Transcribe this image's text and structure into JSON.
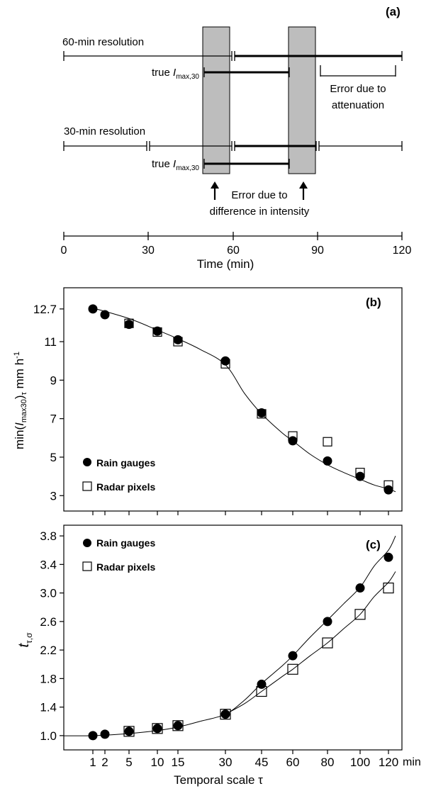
{
  "panel_a": {
    "label": "(a)",
    "row60_label": "60-min resolution",
    "row30_label": "30-min resolution",
    "true_label": "true",
    "true_label_sym": "I",
    "true_label_sub": "max,30",
    "attenuation_l1": "Error due to",
    "attenuation_l2": "attenuation",
    "intensity_l1": "Error due to",
    "intensity_l2": "difference in intensity",
    "xlabel": "Time (min)",
    "ticks": [
      "0",
      "30",
      "60",
      "90",
      "120"
    ]
  },
  "panel_b": {
    "label": "(b)",
    "ylabel_min": "min(",
    "ylabel_sym": "I",
    "ylabel_sub": "max30",
    "ylabel_tail": ")",
    "ylabel_tau": "τ",
    "ylabel_unit": " mm h",
    "ylabel_exp": "-1",
    "legend_gauges": "Rain gauges",
    "legend_radar": "Radar pixels",
    "yticks": [
      "12.7",
      "11",
      "9",
      "7",
      "5",
      "3"
    ]
  },
  "panel_c": {
    "label": "(c)",
    "ylabel_sym": "t",
    "ylabel_sub": "τ,σ",
    "legend_gauges": "Rain gauges",
    "legend_radar": "Radar pixels",
    "yticks": [
      "3.8",
      "3.4",
      "3.0",
      "2.6",
      "2.2",
      "1.8",
      "1.4",
      "1.0"
    ],
    "xticks": [
      "1",
      "2",
      "5",
      "10",
      "15",
      "30",
      "45",
      "60",
      "80",
      "100",
      "120"
    ],
    "xunit": "min",
    "xlabel": "Temporal scale τ"
  },
  "chart_data": [
    {
      "type": "diagram",
      "panel": "(a)",
      "xlabel": "Time (min)",
      "xlim": [
        0,
        120
      ],
      "shaded_windows_min": [
        [
          50,
          60
        ],
        [
          80,
          90
        ]
      ],
      "row_60min": {
        "thin": [
          [
            0,
            60
          ]
        ],
        "thick": [
          [
            60,
            120
          ]
        ]
      },
      "true_imax30": [
        [
          50,
          80
        ]
      ],
      "row_30min": {
        "thin": [
          [
            0,
            30
          ],
          [
            30,
            60
          ],
          [
            90,
            120
          ]
        ],
        "thick": [
          [
            60,
            90
          ]
        ]
      },
      "attenuation_bracket": [
        92,
        118
      ]
    },
    {
      "type": "scatter",
      "panel": "(b)",
      "x": [
        1,
        2,
        5,
        10,
        15,
        30,
        45,
        60,
        80,
        100,
        120
      ],
      "series": [
        {
          "name": "Rain gauges",
          "marker": "filled-circle",
          "values": [
            12.7,
            12.4,
            11.9,
            11.55,
            11.1,
            10.0,
            7.3,
            5.85,
            4.8,
            4.0,
            3.3
          ]
        },
        {
          "name": "Radar pixels",
          "marker": "open-square",
          "values": [
            null,
            null,
            11.95,
            11.5,
            11.0,
            9.85,
            7.25,
            6.1,
            5.8,
            4.2,
            3.55
          ]
        }
      ],
      "fit": {
        "x": [
          1,
          5,
          10,
          15,
          22,
          30,
          38,
          45,
          55,
          60,
          70,
          80,
          90,
          100,
          110,
          120,
          125
        ],
        "y": [
          12.75,
          12.2,
          11.6,
          11.15,
          10.6,
          9.8,
          8.3,
          7.25,
          6.25,
          5.85,
          5.15,
          4.6,
          4.2,
          3.85,
          3.55,
          3.35,
          3.2
        ]
      },
      "ylim": [
        2.2,
        13.8
      ],
      "yticks": [
        3,
        5,
        7,
        9,
        11,
        12.7
      ]
    },
    {
      "type": "scatter",
      "panel": "(c)",
      "x": [
        1,
        2,
        5,
        10,
        15,
        30,
        45,
        60,
        80,
        100,
        120
      ],
      "series": [
        {
          "name": "Rain gauges",
          "marker": "filled-circle",
          "values": [
            1.0,
            1.02,
            1.06,
            1.1,
            1.14,
            1.3,
            1.72,
            2.12,
            2.6,
            3.07,
            3.5
          ]
        },
        {
          "name": "Radar pixels",
          "marker": "open-square",
          "values": [
            null,
            null,
            1.06,
            1.1,
            1.14,
            1.3,
            1.62,
            1.93,
            2.3,
            2.7,
            3.07
          ]
        }
      ],
      "fits": [
        {
          "name": "Rain gauges",
          "x": [
            -5,
            1,
            5,
            10,
            15,
            22,
            30,
            38,
            45,
            55,
            60,
            70,
            80,
            90,
            100,
            110,
            120,
            125
          ],
          "y": [
            1.0,
            1.0,
            1.03,
            1.07,
            1.12,
            1.2,
            1.3,
            1.5,
            1.73,
            1.98,
            2.12,
            2.38,
            2.62,
            2.85,
            3.08,
            3.38,
            3.6,
            3.8
          ]
        },
        {
          "name": "Radar pixels",
          "x": [
            30,
            38,
            45,
            55,
            60,
            70,
            80,
            90,
            100,
            110,
            120,
            125
          ],
          "y": [
            1.3,
            1.45,
            1.62,
            1.83,
            1.93,
            2.12,
            2.3,
            2.5,
            2.7,
            2.95,
            3.15,
            3.3
          ]
        }
      ],
      "ylim": [
        0.8,
        3.95
      ],
      "yticks": [
        1.0,
        1.4,
        1.8,
        2.2,
        2.6,
        3.0,
        3.4,
        3.8
      ],
      "xunit": "min"
    }
  ]
}
